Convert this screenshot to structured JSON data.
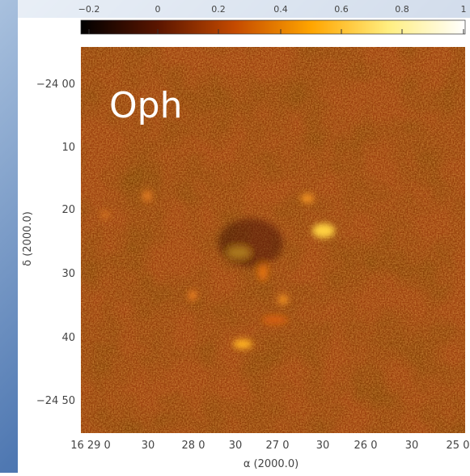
{
  "colorbar": {
    "ticks": [
      "−0.2",
      "0",
      "0.2",
      "0.4",
      "0.6",
      "0.8",
      "1"
    ]
  },
  "annotation": "Oph",
  "y_axis": {
    "label": "δ (2000.0)",
    "ticks": [
      "−24 00",
      "10",
      "20",
      "30",
      "40",
      "−24 50"
    ]
  },
  "x_axis": {
    "label": "α (2000.0)",
    "ticks": [
      "16 29 0",
      "30",
      "28 0",
      "30",
      "27 0",
      "30",
      "26 0",
      "30",
      "25 0"
    ]
  }
}
